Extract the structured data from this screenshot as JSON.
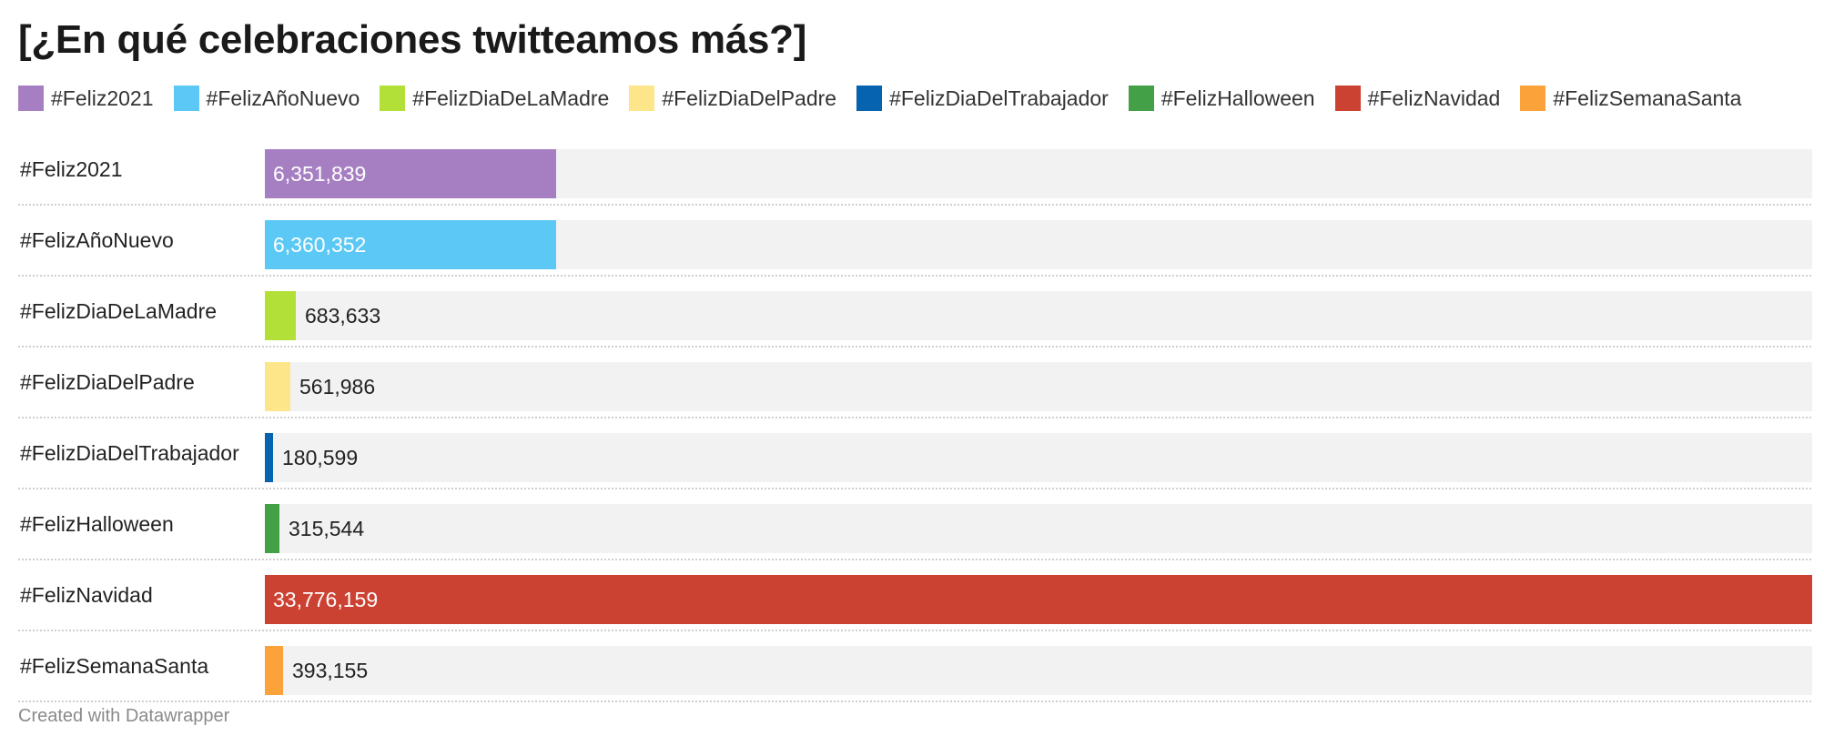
{
  "title": "[¿En qué celebraciones twitteamos más?]",
  "footer": "Created with Datawrapper",
  "chart_data": {
    "type": "bar",
    "orientation": "horizontal",
    "title": "[¿En qué celebraciones twitteamos más?]",
    "legend_position": "top",
    "xlim": [
      0,
      33776159
    ],
    "categories": [
      "#Feliz2021",
      "#FelizAñoNuevo",
      "#FelizDiaDeLaMadre",
      "#FelizDiaDelPadre",
      "#FelizDiaDelTrabajador",
      "#FelizHalloween",
      "#FelizNavidad",
      "#FelizSemanaSanta"
    ],
    "values": [
      6351839,
      6360352,
      683633,
      561986,
      180599,
      315544,
      33776159,
      393155
    ],
    "value_labels": [
      "6,351,839",
      "6,360,352",
      "683,633",
      "561,986",
      "180,599",
      "315,544",
      "33,776,159",
      "393,155"
    ],
    "colors": [
      "#a67fc2",
      "#5bc8f5",
      "#b2df38",
      "#fde68a",
      "#0563af",
      "#43a047",
      "#cc4232",
      "#fca23b"
    ],
    "legend": [
      {
        "label": "#Feliz2021",
        "color": "#a67fc2"
      },
      {
        "label": "#FelizAñoNuevo",
        "color": "#5bc8f5"
      },
      {
        "label": "#FelizDiaDeLaMadre",
        "color": "#b2df38"
      },
      {
        "label": "#FelizDiaDelPadre",
        "color": "#fde68a"
      },
      {
        "label": "#FelizDiaDelTrabajador",
        "color": "#0563af"
      },
      {
        "label": "#FelizHalloween",
        "color": "#43a047"
      },
      {
        "label": "#FelizNavidad",
        "color": "#cc4232"
      },
      {
        "label": "#FelizSemanaSanta",
        "color": "#fca23b"
      }
    ]
  }
}
